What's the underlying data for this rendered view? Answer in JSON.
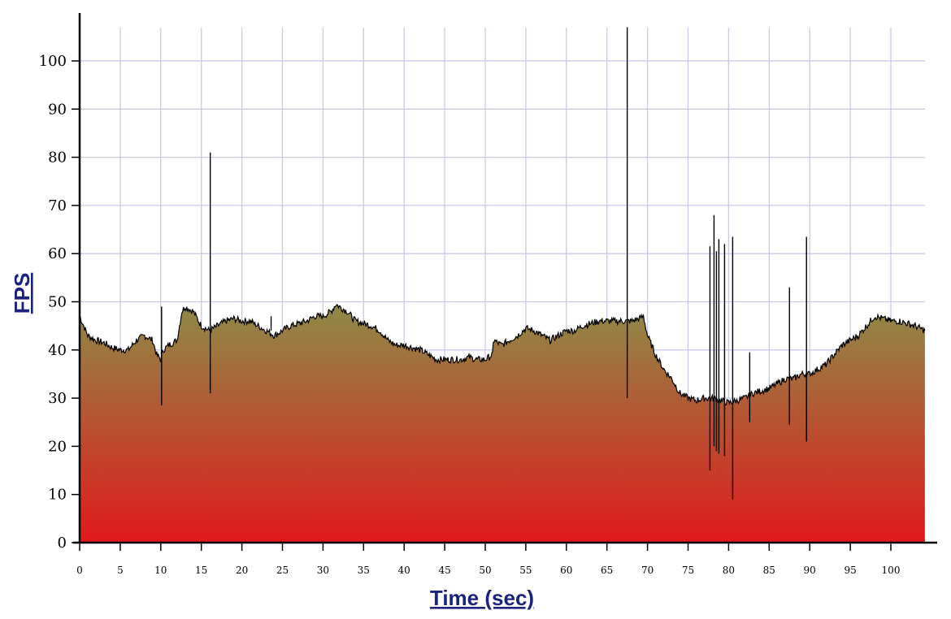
{
  "chart_data": {
    "type": "area",
    "xlabel": "Time (sec)",
    "ylabel": "FPS",
    "xlim": [
      0,
      104.2
    ],
    "ylim": [
      0,
      107
    ],
    "x_ticks": [
      0,
      5,
      10,
      15,
      20,
      25,
      30,
      35,
      40,
      45,
      50,
      55,
      60,
      65,
      70,
      75,
      80,
      85,
      90,
      95,
      100
    ],
    "y_ticks": [
      0,
      10,
      20,
      30,
      40,
      50,
      60,
      70,
      80,
      90,
      100
    ],
    "grid": true,
    "legend": "none",
    "colors": {
      "fill_top": "#8e8b48",
      "fill_bottom": "#e0191c",
      "line": "#000000",
      "grid": "#c8c8e8",
      "axis_title": "#1a237e"
    },
    "series": [
      {
        "x": [
          0,
          0.5,
          1,
          2,
          3,
          4,
          5,
          6,
          7,
          8,
          9,
          9.5,
          10,
          10.3,
          11,
          12,
          12.6,
          13,
          14,
          15,
          16,
          17,
          18,
          19,
          20,
          21,
          22,
          23,
          24,
          25,
          26,
          27,
          28,
          29,
          30,
          31,
          31.6,
          32,
          33,
          34,
          35,
          36,
          37,
          38,
          39,
          40,
          41,
          42,
          43,
          44,
          45,
          46,
          47,
          48,
          49,
          50,
          50.9,
          51,
          52,
          53,
          54,
          55,
          56,
          57,
          58,
          59,
          60,
          61,
          62,
          63,
          64,
          65,
          66,
          67,
          68,
          69,
          69.5,
          70,
          71,
          72,
          73,
          74,
          75,
          76,
          77,
          78,
          79,
          80,
          81,
          82,
          83,
          84,
          85,
          86,
          87,
          88,
          89,
          90,
          91,
          92,
          93,
          94,
          95,
          96,
          97,
          98,
          99,
          100,
          101,
          102,
          103,
          104.2
        ],
        "values": [
          47,
          45,
          43,
          42,
          41.5,
          40.5,
          40,
          40,
          42,
          43,
          42,
          39,
          38,
          40,
          41,
          42,
          48,
          49,
          48,
          45,
          44,
          45,
          46,
          46.5,
          46,
          46,
          45,
          44,
          43,
          44,
          45,
          45.5,
          46,
          47,
          47,
          48,
          49.5,
          49,
          48,
          46,
          45.5,
          45,
          44,
          42,
          41,
          41,
          40.5,
          40,
          39,
          38,
          38,
          38,
          38,
          38.5,
          38,
          38,
          39,
          42,
          41,
          42,
          43,
          44.5,
          44,
          43,
          42,
          43,
          44,
          44,
          45,
          45.5,
          46,
          46,
          46,
          46,
          46,
          46.5,
          47,
          43,
          39,
          36,
          34,
          31,
          30,
          29.5,
          30,
          30,
          29.5,
          29,
          29.5,
          30,
          31,
          31.5,
          32,
          33,
          34,
          34,
          35,
          35,
          36,
          37,
          39,
          41,
          42,
          43,
          45,
          47,
          46.5,
          46,
          46,
          45.5,
          45,
          44
        ]
      }
    ],
    "spikes": [
      {
        "x": 10.1,
        "low": 28.5,
        "high": 49
      },
      {
        "x": 16.1,
        "low": 31,
        "high": 81
      },
      {
        "x": 23.6,
        "low": 44,
        "high": 47
      },
      {
        "x": 67.5,
        "low": 30,
        "high": 108
      },
      {
        "x": 77.7,
        "low": 15,
        "high": 61.5
      },
      {
        "x": 78.2,
        "low": 20,
        "high": 68
      },
      {
        "x": 78.5,
        "low": 19,
        "high": 60.5
      },
      {
        "x": 78.8,
        "low": 18.5,
        "high": 63
      },
      {
        "x": 79.5,
        "low": 18,
        "high": 62
      },
      {
        "x": 80.5,
        "low": 9,
        "high": 63.5
      },
      {
        "x": 82.6,
        "low": 25,
        "high": 39.5
      },
      {
        "x": 87.5,
        "low": 24.5,
        "high": 53
      },
      {
        "x": 89.6,
        "low": 21,
        "high": 63.5
      }
    ]
  }
}
